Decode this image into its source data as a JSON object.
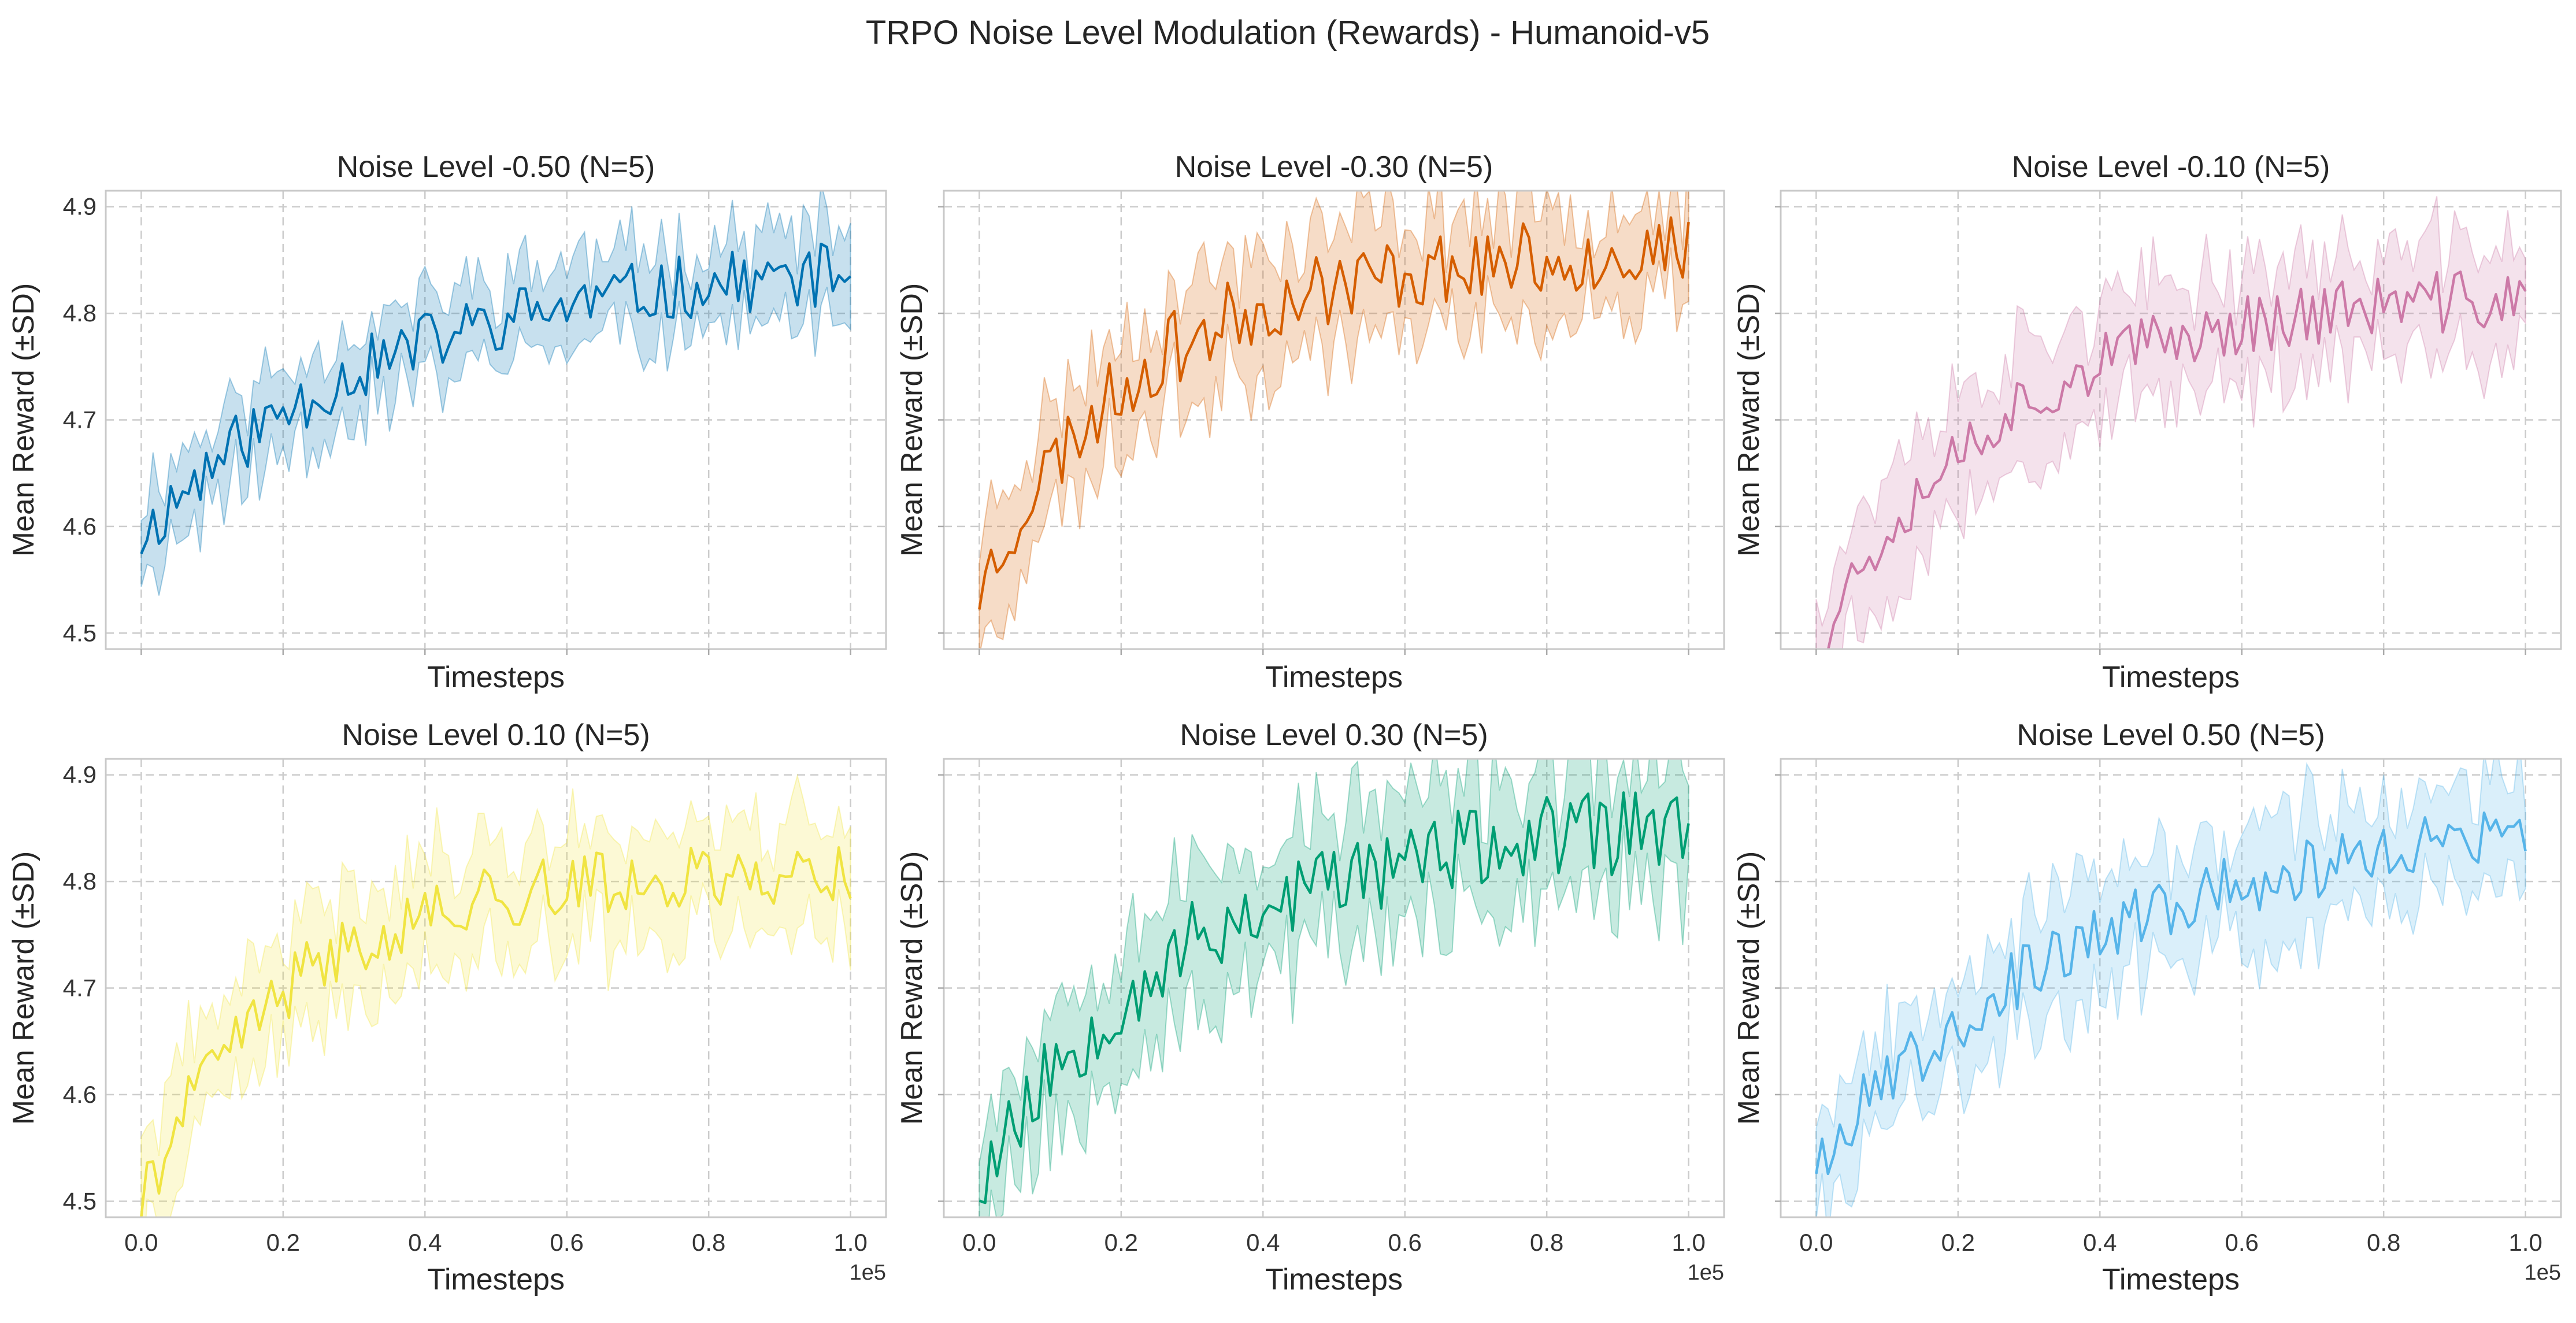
{
  "figure": {
    "title": "TRPO Noise Level Modulation (Rewards) - Humanoid-v5"
  },
  "chart_data": [
    {
      "type": "line",
      "title": "Noise Level -0.50 (N=5)",
      "xlabel": "Timesteps",
      "ylabel": "Mean Reward (±SD)",
      "color": "#0072B2",
      "show_x_ticks": false,
      "x_offset_label": "",
      "shaded_band": "±SD",
      "xlim": [
        -0.05,
        1.05
      ],
      "ylim": [
        4.485,
        4.915
      ],
      "x_ticks": [
        "0.0",
        "0.2",
        "0.4",
        "0.6",
        "0.8",
        "1.0"
      ],
      "y_ticks": [
        "4.5",
        "4.6",
        "4.7",
        "4.8",
        "4.9"
      ],
      "grid": true,
      "start": 4.59,
      "plateau": 4.85,
      "rate": 3.0,
      "noise": 0.03,
      "sd": 0.04,
      "seed": 11
    },
    {
      "type": "line",
      "title": "Noise Level -0.30 (N=5)",
      "xlabel": "Timesteps",
      "ylabel": "Mean Reward (±SD)",
      "color": "#D55E00",
      "show_x_ticks": false,
      "x_offset_label": "",
      "shaded_band": "±SD",
      "xlim": [
        -0.05,
        1.05
      ],
      "ylim": [
        4.485,
        4.915
      ],
      "x_ticks": [
        "0.0",
        "0.2",
        "0.4",
        "0.6",
        "0.8",
        "1.0"
      ],
      "y_ticks": [
        "4.5",
        "4.6",
        "4.7",
        "4.8",
        "4.9"
      ],
      "grid": true,
      "start": 4.54,
      "plateau": 4.86,
      "rate": 4.5,
      "noise": 0.035,
      "sd": 0.05,
      "seed": 23
    },
    {
      "type": "line",
      "title": "Noise Level -0.10 (N=5)",
      "xlabel": "Timesteps",
      "ylabel": "Mean Reward (±SD)",
      "color": "#CC79A7",
      "show_x_ticks": false,
      "x_offset_label": "",
      "shaded_band": "±SD",
      "xlim": [
        -0.05,
        1.05
      ],
      "ylim": [
        4.485,
        4.915
      ],
      "x_ticks": [
        "0.0",
        "0.2",
        "0.4",
        "0.6",
        "0.8",
        "1.0"
      ],
      "y_ticks": [
        "4.5",
        "4.6",
        "4.7",
        "4.8",
        "4.9"
      ],
      "grid": true,
      "start": 4.49,
      "plateau": 4.82,
      "rate": 4.0,
      "noise": 0.03,
      "sd": 0.05,
      "seed": 37
    },
    {
      "type": "line",
      "title": "Noise Level 0.10 (N=5)",
      "xlabel": "Timesteps",
      "ylabel": "Mean Reward (±SD)",
      "color": "#F0E442",
      "show_x_ticks": true,
      "x_offset_label": "1e5",
      "shaded_band": "±SD",
      "xlim": [
        -0.05,
        1.05
      ],
      "ylim": [
        4.485,
        4.915
      ],
      "x_ticks": [
        "0.0",
        "0.2",
        "0.4",
        "0.6",
        "0.8",
        "1.0"
      ],
      "y_ticks": [
        "4.5",
        "4.6",
        "4.7",
        "4.8",
        "4.9"
      ],
      "grid": true,
      "start": 4.5,
      "plateau": 4.81,
      "rate": 5.0,
      "noise": 0.03,
      "sd": 0.05,
      "seed": 41
    },
    {
      "type": "line",
      "title": "Noise Level 0.30 (N=5)",
      "xlabel": "Timesteps",
      "ylabel": "Mean Reward (±SD)",
      "color": "#009E73",
      "show_x_ticks": true,
      "x_offset_label": "1e5",
      "shaded_band": "±SD",
      "xlim": [
        -0.05,
        1.05
      ],
      "ylim": [
        4.485,
        4.915
      ],
      "x_ticks": [
        "0.0",
        "0.2",
        "0.4",
        "0.6",
        "0.8",
        "1.0"
      ],
      "y_ticks": [
        "4.5",
        "4.6",
        "4.7",
        "4.8",
        "4.9"
      ],
      "grid": true,
      "start": 4.52,
      "plateau": 4.86,
      "rate": 3.5,
      "noise": 0.04,
      "sd": 0.06,
      "seed": 53
    },
    {
      "type": "line",
      "title": "Noise Level 0.50 (N=5)",
      "xlabel": "Timesteps",
      "ylabel": "Mean Reward (±SD)",
      "color": "#56B4E9",
      "show_x_ticks": true,
      "x_offset_label": "1e5",
      "shaded_band": "±SD",
      "xlim": [
        -0.05,
        1.05
      ],
      "ylim": [
        4.485,
        4.915
      ],
      "x_ticks": [
        "0.0",
        "0.2",
        "0.4",
        "0.6",
        "0.8",
        "1.0"
      ],
      "y_ticks": [
        "4.5",
        "4.6",
        "4.7",
        "4.8",
        "4.9"
      ],
      "grid": true,
      "start": 4.54,
      "plateau": 4.87,
      "rate": 2.5,
      "noise": 0.03,
      "sd": 0.05,
      "seed": 67
    }
  ]
}
